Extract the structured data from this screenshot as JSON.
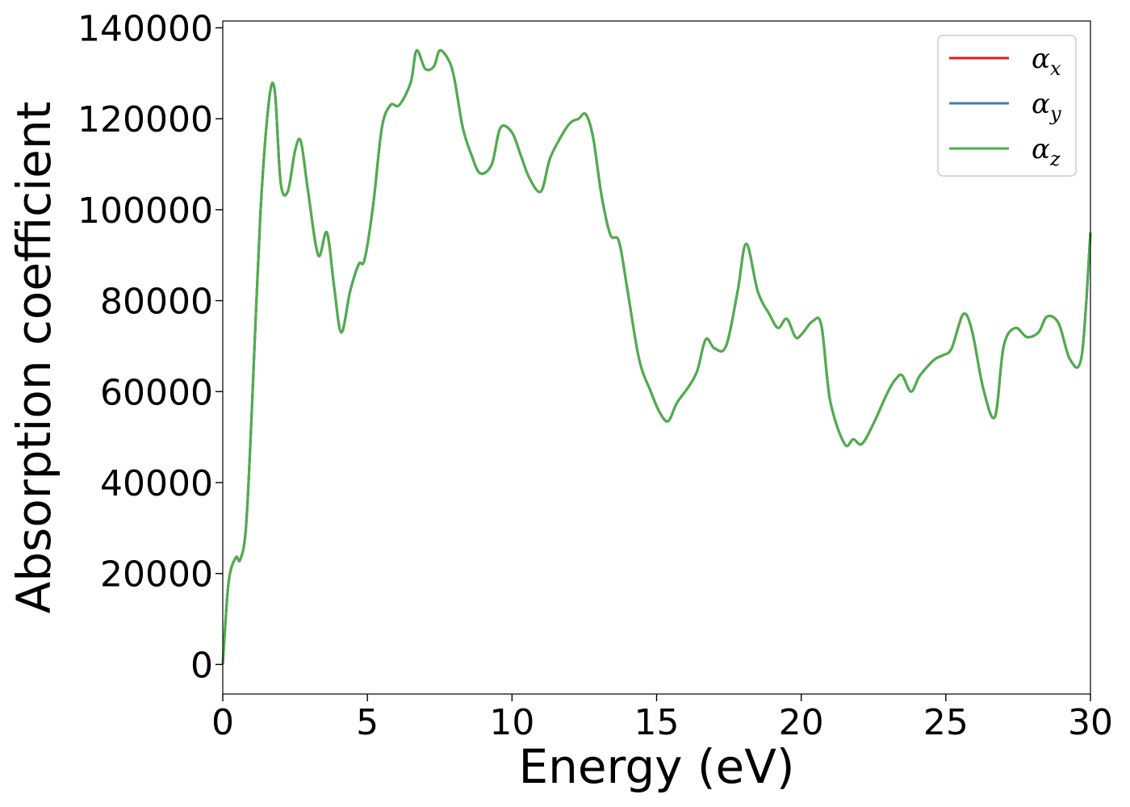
{
  "chart_data": {
    "type": "line",
    "title": "",
    "xlabel": "Energy (eV)",
    "ylabel": "Absorption coefficient",
    "xlim": [
      0,
      30
    ],
    "ylim": [
      -6500,
      141500
    ],
    "xticks": [
      0,
      5,
      10,
      15,
      20,
      25,
      30
    ],
    "yticks": [
      0,
      20000,
      40000,
      60000,
      80000,
      100000,
      120000,
      140000
    ],
    "grid": false,
    "legend_position": "top-right",
    "x": [
      0,
      0.2,
      0.45,
      0.6,
      0.8,
      1.0,
      1.3,
      1.6,
      1.8,
      2.0,
      2.25,
      2.5,
      2.7,
      2.95,
      3.3,
      3.6,
      3.85,
      4.1,
      4.4,
      4.7,
      4.9,
      5.2,
      5.5,
      5.8,
      6.1,
      6.5,
      6.7,
      7.0,
      7.3,
      7.5,
      7.8,
      8.0,
      8.3,
      8.6,
      8.9,
      9.3,
      9.6,
      10.0,
      10.3,
      10.6,
      11.0,
      11.3,
      11.6,
      12.0,
      12.3,
      12.55,
      12.8,
      13.1,
      13.4,
      13.7,
      14.0,
      14.4,
      14.8,
      15.1,
      15.4,
      15.7,
      16.1,
      16.4,
      16.7,
      17.0,
      17.4,
      17.8,
      18.1,
      18.5,
      18.9,
      19.2,
      19.5,
      19.8,
      20.0,
      20.4,
      20.7,
      21.0,
      21.5,
      21.8,
      22.1,
      22.5,
      23.0,
      23.3,
      23.5,
      23.8,
      24.1,
      24.6,
      24.9,
      25.2,
      25.6,
      25.9,
      26.3,
      26.7,
      27.0,
      27.4,
      27.8,
      28.2,
      28.5,
      28.9,
      29.3,
      29.7,
      30.0
    ],
    "series": [
      {
        "name": "α_x",
        "color": "#e41a1c",
        "values": [
          0,
          18000,
          23500,
          23000,
          30000,
          55000,
          99000,
          124000,
          126000,
          106000,
          104000,
          113000,
          115000,
          104000,
          90000,
          95000,
          83000,
          73000,
          82000,
          88000,
          89000,
          101000,
          118000,
          123000,
          123000,
          128000,
          135000,
          131000,
          131500,
          135000,
          133000,
          129000,
          118000,
          112000,
          108000,
          110000,
          118000,
          117000,
          112000,
          107000,
          104000,
          111000,
          115000,
          119000,
          120000,
          121000,
          116000,
          103000,
          94500,
          93000,
          82000,
          67000,
          60000,
          55500,
          53500,
          57500,
          61000,
          64500,
          71500,
          69500,
          70000,
          82000,
          92500,
          82000,
          77000,
          74000,
          76000,
          72000,
          72500,
          75500,
          74500,
          58000,
          48500,
          49500,
          48500,
          53000,
          60000,
          63000,
          63500,
          60000,
          63500,
          67000,
          68000,
          69500,
          77000,
          73500,
          60500,
          54500,
          70000,
          74000,
          72000,
          73000,
          76500,
          75000,
          67000,
          68000,
          95000
        ]
      },
      {
        "name": "α_y",
        "color": "#377eb8",
        "values": [
          0,
          18000,
          23500,
          23000,
          30000,
          55000,
          99000,
          124000,
          126000,
          106000,
          104000,
          113000,
          115000,
          104000,
          90000,
          95000,
          83000,
          73000,
          82000,
          88000,
          89000,
          101000,
          118000,
          123000,
          123000,
          128000,
          135000,
          131000,
          131500,
          135000,
          133000,
          129000,
          118000,
          112000,
          108000,
          110000,
          118000,
          117000,
          112000,
          107000,
          104000,
          111000,
          115000,
          119000,
          120000,
          121000,
          116000,
          103000,
          94500,
          93000,
          82000,
          67000,
          60000,
          55500,
          53500,
          57500,
          61000,
          64500,
          71500,
          69500,
          70000,
          82000,
          92500,
          82000,
          77000,
          74000,
          76000,
          72000,
          72500,
          75500,
          74500,
          58000,
          48500,
          49500,
          48500,
          53000,
          60000,
          63000,
          63500,
          60000,
          63500,
          67000,
          68000,
          69500,
          77000,
          73500,
          60500,
          54500,
          70000,
          74000,
          72000,
          73000,
          76500,
          75000,
          67000,
          68000,
          95000
        ]
      },
      {
        "name": "α_z",
        "color": "#4daf4a",
        "values": [
          0,
          18000,
          23500,
          23000,
          30000,
          55000,
          99000,
          124000,
          126000,
          106000,
          104000,
          113000,
          115000,
          104000,
          90000,
          95000,
          83000,
          73000,
          82000,
          88000,
          89000,
          101000,
          118000,
          123000,
          123000,
          128000,
          135000,
          131000,
          131500,
          135000,
          133000,
          129000,
          118000,
          112000,
          108000,
          110000,
          118000,
          117000,
          112000,
          107000,
          104000,
          111000,
          115000,
          119000,
          120000,
          121000,
          116000,
          103000,
          94500,
          93000,
          82000,
          67000,
          60000,
          55500,
          53500,
          57500,
          61000,
          64500,
          71500,
          69500,
          70000,
          82000,
          92500,
          82000,
          77000,
          74000,
          76000,
          72000,
          72500,
          75500,
          74500,
          58000,
          48500,
          49500,
          48500,
          53000,
          60000,
          63000,
          63500,
          60000,
          63500,
          67000,
          68000,
          69500,
          77000,
          73500,
          60500,
          54500,
          70000,
          74000,
          72000,
          73000,
          76500,
          75000,
          67000,
          68000,
          95000
        ]
      }
    ],
    "legend": [
      {
        "base": "α",
        "sub": "x"
      },
      {
        "base": "α",
        "sub": "y"
      },
      {
        "base": "α",
        "sub": "z"
      }
    ]
  }
}
